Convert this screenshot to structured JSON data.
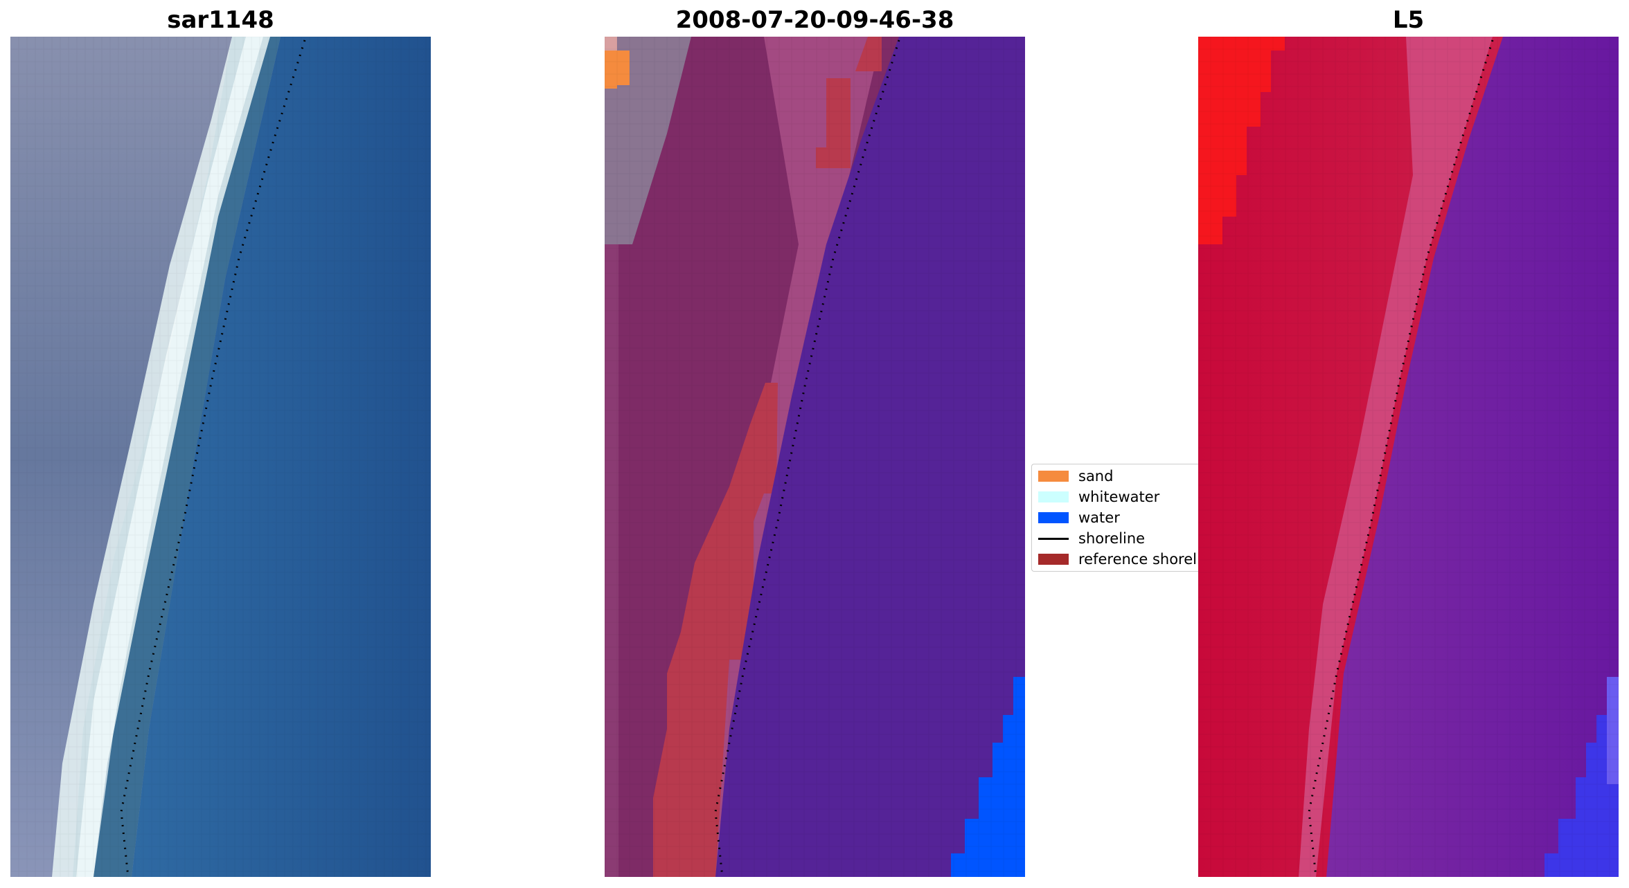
{
  "panels": [
    {
      "title": "sar1148"
    },
    {
      "title": "2008-07-20-09-46-38"
    },
    {
      "title": "L5"
    }
  ],
  "legend": [
    {
      "label": "sand",
      "color": "#f58b3e",
      "kind": "patch"
    },
    {
      "label": "whitewater",
      "color": "#ccffff",
      "kind": "patch"
    },
    {
      "label": "water",
      "color": "#0055ff",
      "kind": "patch"
    },
    {
      "label": "shoreline",
      "color": "#000000",
      "kind": "line"
    },
    {
      "label": "reference shoreline",
      "color": "#a52a2a",
      "kind": "patch"
    }
  ],
  "colors": {
    "sar_land": "#6f7fa6",
    "sar_water": "#235b9c",
    "class_land": "#7e2b66",
    "class_water": "#552397",
    "ndwi_land": "#c5163c",
    "ndwi_water": "#6c1ea1"
  }
}
